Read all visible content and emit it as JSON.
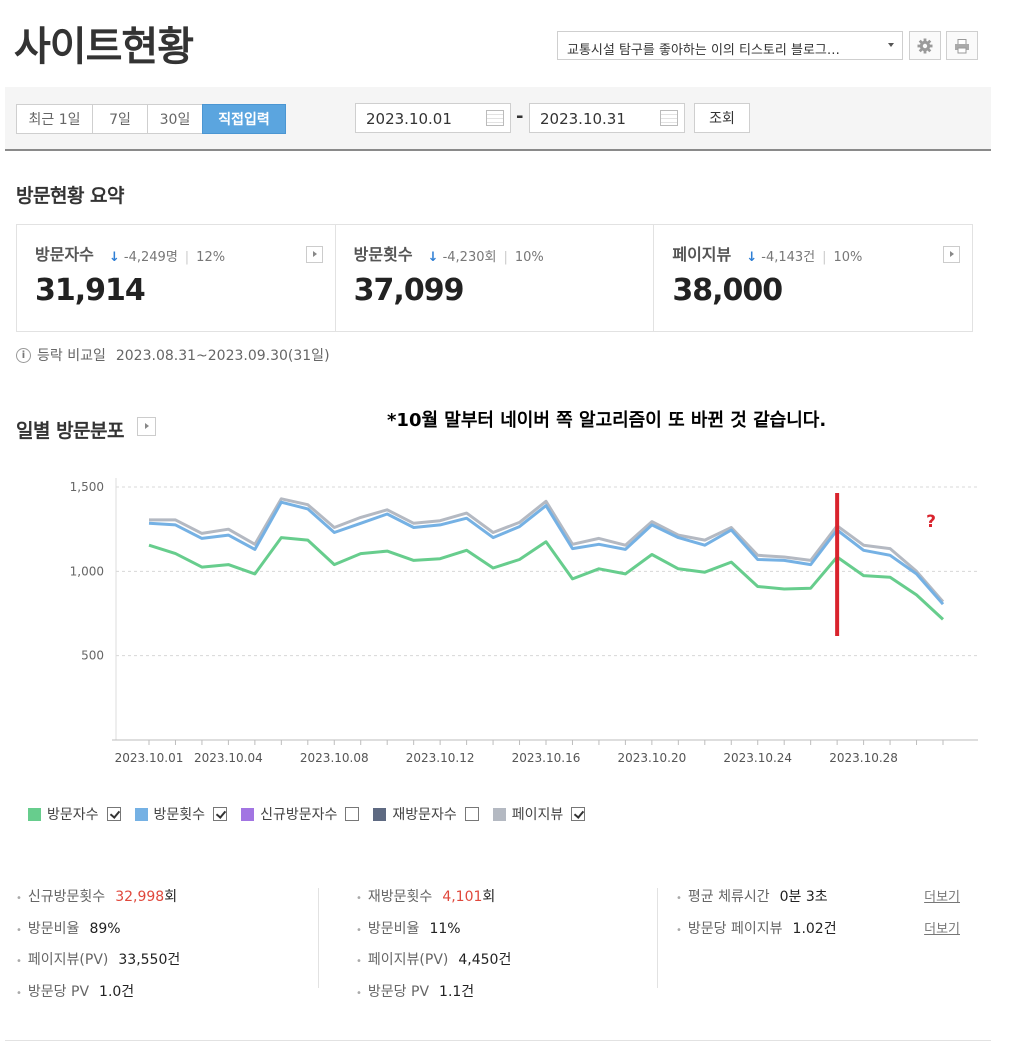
{
  "header": {
    "title": "사이트현황",
    "blog_select": "교통시설 탐구를 좋아하는 이의 티스토리 블로그…",
    "settings_icon": "gear-icon",
    "print_icon": "printer-icon"
  },
  "toolbar": {
    "range_tabs": [
      "최근 1일",
      "7일",
      "30일",
      "직접입력"
    ],
    "active_tab": "직접입력",
    "start_date": "2023.10.01",
    "end_date": "2023.10.31",
    "date_separator": "-",
    "query_label": "조회"
  },
  "summary": {
    "title": "방문현황 요약",
    "metrics": [
      {
        "label": "방문자수",
        "delta": "-4,249명",
        "percent": "12%",
        "value": "31,914"
      },
      {
        "label": "방문횟수",
        "delta": "-4,230회",
        "percent": "10%",
        "value": "37,099"
      },
      {
        "label": "페이지뷰",
        "delta": "-4,143건",
        "percent": "10%",
        "value": "38,000"
      }
    ],
    "compare_label": "등락 비교일",
    "compare_range": "2023.08.31~2023.09.30(31일)"
  },
  "chart_section": {
    "title": "일별 방문분포",
    "annotation": "*10월 말부터 네이버 쪽 알고리즘이 또 바뀐 것 같습니다.",
    "question_mark": "?",
    "highlight_color": "#d9232d"
  },
  "chart_data": {
    "type": "line",
    "x": [
      "2023.10.01",
      "2023.10.02",
      "2023.10.03",
      "2023.10.04",
      "2023.10.05",
      "2023.10.06",
      "2023.10.07",
      "2023.10.08",
      "2023.10.09",
      "2023.10.10",
      "2023.10.11",
      "2023.10.12",
      "2023.10.13",
      "2023.10.14",
      "2023.10.15",
      "2023.10.16",
      "2023.10.17",
      "2023.10.18",
      "2023.10.19",
      "2023.10.20",
      "2023.10.21",
      "2023.10.22",
      "2023.10.23",
      "2023.10.24",
      "2023.10.25",
      "2023.10.26",
      "2023.10.27",
      "2023.10.28",
      "2023.10.29",
      "2023.10.30",
      "2023.10.31"
    ],
    "tick_labels": [
      "2023.10.01",
      "2023.10.04",
      "2023.10.08",
      "2023.10.12",
      "2023.10.16",
      "2023.10.20",
      "2023.10.24",
      "2023.10.28"
    ],
    "y_ticks": [
      "500",
      "1,000",
      "1,500"
    ],
    "ylim": [
      0,
      1500
    ],
    "grid": true,
    "marker_date": "2023.10.27",
    "series": [
      {
        "name": "방문자수",
        "color": "#67cd8d",
        "values": [
          1155,
          1105,
          1025,
          1040,
          985,
          1200,
          1185,
          1040,
          1105,
          1120,
          1065,
          1075,
          1125,
          1020,
          1070,
          1175,
          955,
          1015,
          985,
          1100,
          1015,
          995,
          1055,
          910,
          895,
          900,
          1085,
          975,
          965,
          860,
          715
        ]
      },
      {
        "name": "방문횟수",
        "color": "#75b1e4",
        "values": [
          1285,
          1275,
          1195,
          1215,
          1130,
          1410,
          1370,
          1230,
          1285,
          1340,
          1260,
          1275,
          1315,
          1200,
          1265,
          1390,
          1135,
          1160,
          1130,
          1275,
          1200,
          1155,
          1245,
          1070,
          1065,
          1040,
          1245,
          1125,
          1095,
          985,
          805
        ]
      },
      {
        "name": "페이지뷰",
        "color": "#b4b9c2",
        "values": [
          1305,
          1305,
          1225,
          1250,
          1160,
          1430,
          1395,
          1260,
          1320,
          1365,
          1285,
          1300,
          1345,
          1230,
          1290,
          1415,
          1160,
          1195,
          1155,
          1295,
          1215,
          1185,
          1260,
          1095,
          1085,
          1065,
          1270,
          1155,
          1135,
          1000,
          820
        ]
      }
    ]
  },
  "legend": [
    {
      "label": "방문자수",
      "color": "#67cd8d",
      "checked": true
    },
    {
      "label": "방문횟수",
      "color": "#75b1e4",
      "checked": true
    },
    {
      "label": "신규방문자수",
      "color": "#a275e2",
      "checked": false
    },
    {
      "label": "재방문자수",
      "color": "#5e6a82",
      "checked": false
    },
    {
      "label": "페이지뷰",
      "color": "#b4b9c2",
      "checked": true
    }
  ],
  "stats": {
    "new_visits_label": "신규방문횟수",
    "new_visits_value": "32,998",
    "new_visits_unit": "회",
    "new_ratio_label": "방문비율",
    "new_ratio_value": "89%",
    "new_pv_label": "페이지뷰(PV)",
    "new_pv_value": "33,550건",
    "new_pv_per_label": "방문당 PV",
    "new_pv_per_value": "1.0건",
    "re_visits_label": "재방문횟수",
    "re_visits_value": "4,101",
    "re_visits_unit": "회",
    "re_ratio_label": "방문비율",
    "re_ratio_value": "11%",
    "re_pv_label": "페이지뷰(PV)",
    "re_pv_value": "4,450건",
    "re_pv_per_label": "방문당 PV",
    "re_pv_per_value": "1.1건",
    "avg_stay_label": "평균 체류시간",
    "avg_stay_value": "0분 3초",
    "pv_per_visit_label": "방문당 페이지뷰",
    "pv_per_visit_value": "1.02건",
    "more_label": "더보기"
  }
}
